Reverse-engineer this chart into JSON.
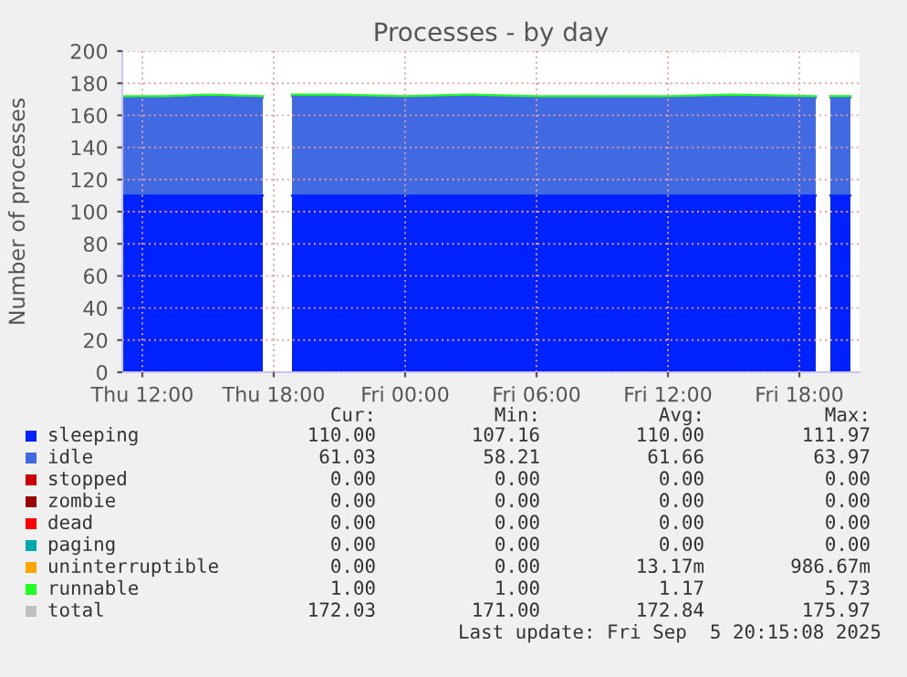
{
  "chart_data": {
    "type": "area",
    "stacked": true,
    "title": "Processes - by day",
    "ylabel": "Number of processes",
    "x": [
      "2025-09-04T11:05",
      "2025-09-04T13:00",
      "2025-09-04T15:00",
      "2025-09-04T17:30",
      "2025-09-04T18:10",
      "2025-09-04T18:50",
      "2025-09-04T21:00",
      "2025-09-05T00:00",
      "2025-09-05T03:00",
      "2025-09-05T06:00",
      "2025-09-05T09:00",
      "2025-09-05T12:00",
      "2025-09-05T15:00",
      "2025-09-05T18:45",
      "2025-09-05T19:05",
      "2025-09-05T19:25",
      "2025-09-05T20:20"
    ],
    "series": [
      {
        "name": "sleeping",
        "color": "#0022ff",
        "values": [
          110,
          110,
          110,
          110,
          null,
          110,
          110,
          110,
          110,
          110,
          110,
          110,
          110,
          110,
          null,
          110,
          110
        ]
      },
      {
        "name": "idle",
        "color": "#4169e1",
        "values": [
          61,
          61,
          62,
          61,
          null,
          62,
          62,
          61,
          62,
          61,
          61,
          61,
          62,
          61,
          null,
          61,
          61
        ]
      },
      {
        "name": "stopped",
        "color": "#cc0000",
        "values": [
          null,
          null,
          null,
          null,
          null,
          null,
          null,
          null,
          null,
          null,
          null,
          null,
          null,
          null,
          null,
          null,
          null
        ]
      },
      {
        "name": "zombie",
        "color": "#990000",
        "values": [
          null,
          null,
          null,
          null,
          null,
          null,
          null,
          null,
          null,
          null,
          null,
          null,
          null,
          null,
          null,
          null,
          null
        ]
      },
      {
        "name": "dead",
        "color": "#ff0000",
        "values": [
          null,
          null,
          null,
          null,
          null,
          null,
          null,
          null,
          null,
          null,
          null,
          null,
          null,
          null,
          null,
          null,
          null
        ]
      },
      {
        "name": "paging",
        "color": "#00aaaa",
        "values": [
          null,
          null,
          null,
          null,
          null,
          null,
          null,
          null,
          null,
          null,
          null,
          null,
          null,
          null,
          null,
          null,
          null
        ]
      },
      {
        "name": "uninterruptible",
        "color": "#ffa500",
        "values": [
          null,
          null,
          null,
          null,
          null,
          null,
          null,
          null,
          null,
          null,
          null,
          null,
          null,
          null,
          null,
          null,
          null
        ]
      },
      {
        "name": "runnable",
        "color": "#22ff22",
        "values": [
          1,
          1,
          1,
          1,
          null,
          1,
          1,
          1,
          1,
          1,
          1,
          1,
          1,
          1,
          null,
          1,
          1
        ]
      },
      {
        "name": "total",
        "color": "#c0c0c0",
        "values": [
          null,
          null,
          null,
          null,
          null,
          null,
          null,
          null,
          null,
          null,
          null,
          null,
          null,
          null,
          null,
          null,
          null
        ]
      }
    ],
    "xlim": [
      "2025-09-04T11:05",
      "2025-09-05T20:45"
    ],
    "xticks": [
      {
        "value": "2025-09-04T12:00",
        "label": "Thu 12:00"
      },
      {
        "value": "2025-09-04T18:00",
        "label": "Thu 18:00"
      },
      {
        "value": "2025-09-05T00:00",
        "label": "Fri 00:00"
      },
      {
        "value": "2025-09-05T06:00",
        "label": "Fri 06:00"
      },
      {
        "value": "2025-09-05T12:00",
        "label": "Fri 12:00"
      },
      {
        "value": "2025-09-05T18:00",
        "label": "Fri 18:00"
      }
    ],
    "ylim": [
      0,
      200
    ],
    "yticks": [
      0,
      20,
      40,
      60,
      80,
      100,
      120,
      140,
      160,
      180,
      200
    ],
    "grid": true,
    "legend": "bottom",
    "annotations": [
      "Cur:",
      "Min:",
      "Avg:",
      "Max:",
      "110.00",
      "107.16",
      "110.00",
      "111.97",
      "61.03",
      "58.21",
      "61.66",
      "63.97",
      "0.00",
      "0.00",
      "0.00",
      "0.00",
      "0.00",
      "0.00",
      "0.00",
      "0.00",
      "0.00",
      "0.00",
      "0.00",
      "0.00",
      "0.00",
      "0.00",
      "0.00",
      "0.00",
      "0.00",
      "0.00",
      "13.17m",
      "986.67m",
      "1.00",
      "1.00",
      "1.17",
      "5.73",
      "172.03",
      "171.00",
      "172.84",
      "175.97",
      "Last update: Fri Sep  5 20:15:08 2025"
    ]
  }
}
